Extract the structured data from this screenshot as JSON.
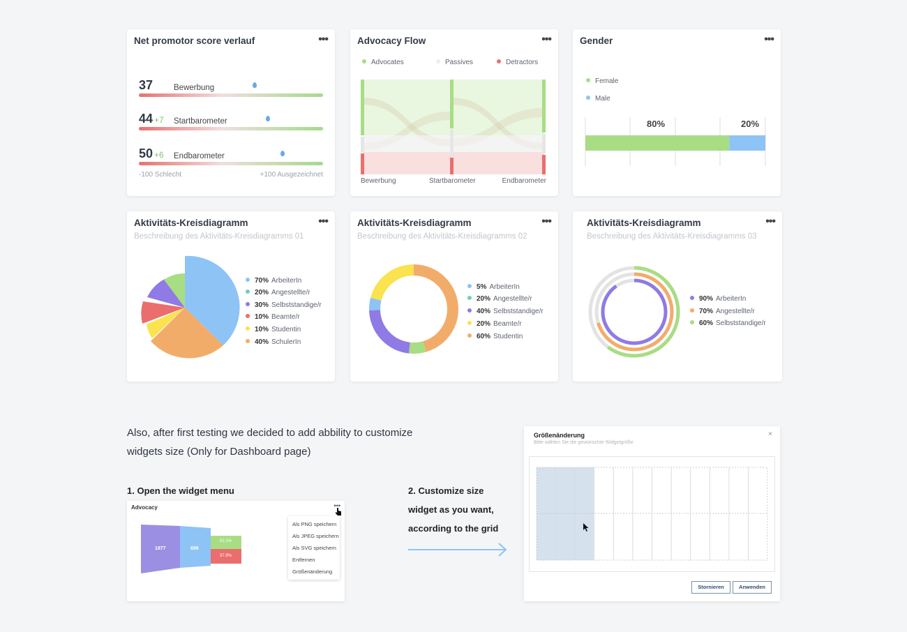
{
  "colors": {
    "green": "#a8dd84",
    "blue": "#8ec3f5",
    "red": "#ea6e6e",
    "purple": "#8f7ae6",
    "yellow": "#fbe24f",
    "orange": "#f2ac6a",
    "teal": "#6fcfb9",
    "grey": "#e0e0e0"
  },
  "nps": {
    "title": "Net promotor score verlauf",
    "rows": [
      {
        "score": "37",
        "delta": "",
        "label": "Bewerbung",
        "pos": 0.63
      },
      {
        "score": "44",
        "delta": "+7",
        "label": "Startbarometer",
        "pos": 0.7
      },
      {
        "score": "50",
        "delta": "+6",
        "label": "Endbarometer",
        "pos": 0.78
      }
    ],
    "min_label": "-100 Schlecht",
    "max_label": "+100 Ausgezeichnet"
  },
  "advocacy": {
    "title": "Advocacy Flow",
    "legend": [
      "Advocates",
      "Passives",
      "Detractors"
    ],
    "stages": [
      "Bewerbung",
      "Startbarometer",
      "Endbarometer"
    ]
  },
  "gender": {
    "title": "Gender",
    "legend": [
      "Female",
      "Male"
    ],
    "values": [
      80,
      20
    ],
    "labels": [
      "80%",
      "20%"
    ]
  },
  "pie1": {
    "title": "Aktivitäts-Kreisdiagramm",
    "subtitle": "Beschreibung des Aktivitäts-Kreisdiagramms 01",
    "items": [
      {
        "pct": "70%",
        "label": "ArbeiterIn",
        "color": "#8ec3f5"
      },
      {
        "pct": "20%",
        "label": "Angestellte/r",
        "color": "#6fcfb9"
      },
      {
        "pct": "30%",
        "label": "Selbststandige/r",
        "color": "#8f7ae6"
      },
      {
        "pct": "10%",
        "label": "Beamte/r",
        "color": "#ea6e6e"
      },
      {
        "pct": "10%",
        "label": "Studentin",
        "color": "#fbe24f"
      },
      {
        "pct": "40%",
        "label": "SchulerIn",
        "color": "#f2ac6a"
      }
    ]
  },
  "pie2": {
    "title": "Aktivitäts-Kreisdiagramm",
    "subtitle": "Beschreibung des Aktivitäts-Kreisdiagramms 02",
    "items": [
      {
        "pct": "5%",
        "label": "ArbeiterIn",
        "color": "#8ec3f5"
      },
      {
        "pct": "20%",
        "label": "Angestellte/r",
        "color": "#6fcfb9"
      },
      {
        "pct": "40%",
        "label": "Selbststandige/r",
        "color": "#8f7ae6"
      },
      {
        "pct": "20%",
        "label": "Beamte/r",
        "color": "#fbe24f"
      },
      {
        "pct": "60%",
        "label": "Studentin",
        "color": "#f2ac6a"
      }
    ]
  },
  "pie3": {
    "title": "Aktivitäts-Kreisdiagramm",
    "subtitle": "Beschreibung des Aktivitäts-Kreisdiagramms 03",
    "items": [
      {
        "pct": "90%",
        "label": "ArbeiterIn",
        "color": "#8f7ae6"
      },
      {
        "pct": "70%",
        "label": "Angestellte/r",
        "color": "#f2ac6a"
      },
      {
        "pct": "60%",
        "label": "Selbststandige/r",
        "color": "#a8dd84"
      }
    ]
  },
  "note": {
    "text": "Also, after first testing we decided to add abbility to customize widgets size (Only for Dashboard page)",
    "step1": "1. Open the widget menu",
    "step2": "2. Customize size widget as you want, according to the grid"
  },
  "mini_widget": {
    "title": "Advocacy",
    "values": [
      "1877",
      "696",
      "52.1%",
      "37.9%"
    ],
    "menu": [
      "Als PNG speichern",
      "Als JPEG speichern",
      "Als SVG speichern",
      "Entfernen",
      "Größenänderung"
    ]
  },
  "dialog": {
    "title": "Größenänderung",
    "subtitle": "Bitte wählen Sie die gewünschte Widgetgröße",
    "close": "×",
    "cancel": "Stornieren",
    "apply": "Anwenden"
  }
}
